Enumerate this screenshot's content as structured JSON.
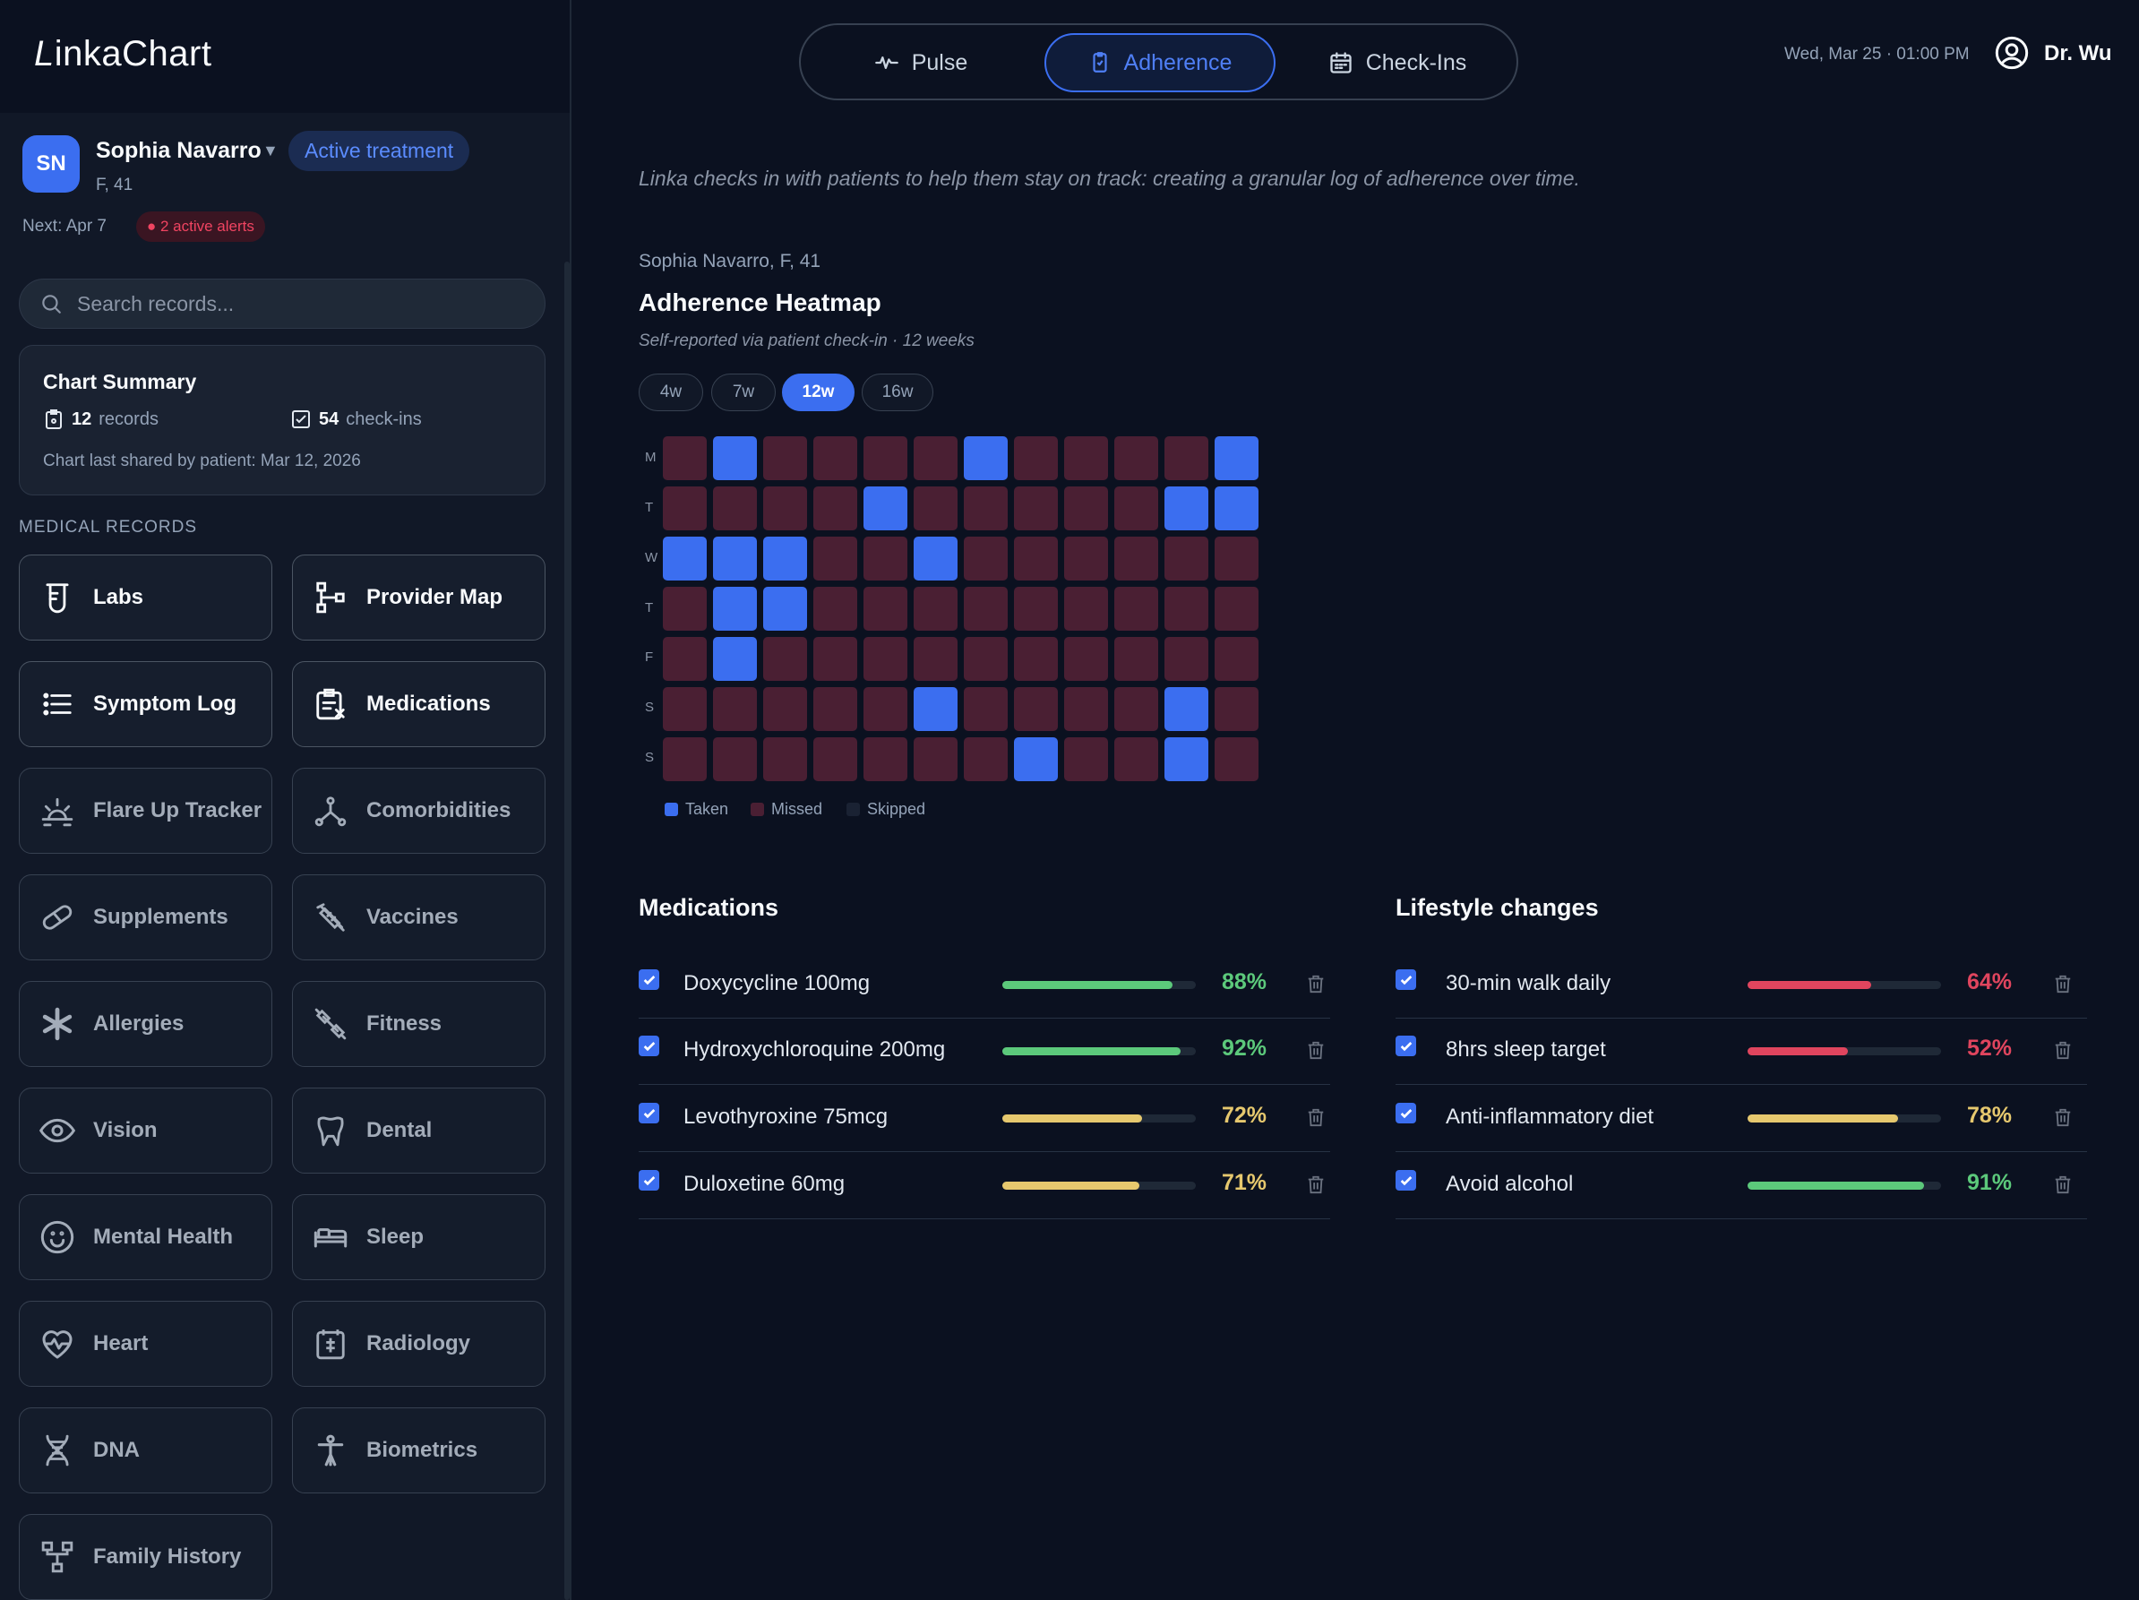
{
  "app": {
    "logo_first": "L",
    "logo_rest": "inkaChart"
  },
  "patient": {
    "initials": "SN",
    "name": "Sophia Navarro",
    "caret": "▼",
    "status": "Active treatment",
    "demographics": "F, 41",
    "next": "Next: Apr 7",
    "alerts": "● 2 active alerts"
  },
  "search": {
    "placeholder": "Search records..."
  },
  "summary": {
    "title": "Chart Summary",
    "records_count": "12",
    "records_label": "records",
    "checkins_count": "54",
    "checkins_label": "check-ins",
    "shared": "Chart last shared by patient: Mar 12, 2026"
  },
  "records": {
    "section": "MEDICAL RECORDS",
    "items": [
      {
        "label": "Labs",
        "icon": "beaker-icon",
        "highlight": true
      },
      {
        "label": "Provider Map",
        "icon": "network-icon",
        "highlight": true
      },
      {
        "label": "Symptom Log",
        "icon": "list-icon",
        "highlight": true
      },
      {
        "label": "Medications",
        "icon": "prescription-icon",
        "highlight": true
      },
      {
        "label": "Flare Up Tracker",
        "icon": "flare-icon",
        "highlight": false
      },
      {
        "label": "Comorbidities",
        "icon": "branch-icon",
        "highlight": false
      },
      {
        "label": "Supplements",
        "icon": "pill-icon",
        "highlight": false
      },
      {
        "label": "Vaccines",
        "icon": "syringe-icon",
        "highlight": false
      },
      {
        "label": "Allergies",
        "icon": "asterisk-icon",
        "highlight": false
      },
      {
        "label": "Fitness",
        "icon": "dumbbell-icon",
        "highlight": false
      },
      {
        "label": "Vision",
        "icon": "eye-icon",
        "highlight": false
      },
      {
        "label": "Dental",
        "icon": "tooth-icon",
        "highlight": false
      },
      {
        "label": "Mental Health",
        "icon": "smile-icon",
        "highlight": false
      },
      {
        "label": "Sleep",
        "icon": "bed-icon",
        "highlight": false
      },
      {
        "label": "Heart",
        "icon": "heart-pulse-icon",
        "highlight": false
      },
      {
        "label": "Radiology",
        "icon": "xray-icon",
        "highlight": false
      },
      {
        "label": "DNA",
        "icon": "dna-icon",
        "highlight": false
      },
      {
        "label": "Biometrics",
        "icon": "body-icon",
        "highlight": false
      },
      {
        "label": "Family History",
        "icon": "family-tree-icon",
        "highlight": false
      }
    ]
  },
  "nav": {
    "tabs": [
      {
        "label": "Pulse",
        "icon": "pulse-icon",
        "active": false
      },
      {
        "label": "Adherence",
        "icon": "clipboard-icon",
        "active": true
      },
      {
        "label": "Check-Ins",
        "icon": "calendar-icon",
        "active": false
      }
    ]
  },
  "header": {
    "datetime": "Wed, Mar 25 · 01:00 PM",
    "user": "Dr. Wu"
  },
  "intro": "Linka checks in with patients to help them stay on track: creating a granular log of adherence over time.",
  "heatmap": {
    "patient": "Sophia Navarro, F, 41",
    "title": "Adherence Heatmap",
    "subtitle": "Self-reported via patient check-in · 12 weeks",
    "ranges": [
      {
        "label": "4w",
        "active": false
      },
      {
        "label": "7w",
        "active": false
      },
      {
        "label": "12w",
        "active": true
      },
      {
        "label": "16w",
        "active": false
      }
    ],
    "days": [
      "M",
      "T",
      "W",
      "T",
      "F",
      "S",
      "S"
    ],
    "grid": [
      [
        0,
        1,
        0,
        0,
        0,
        0,
        1,
        0,
        0,
        0,
        0,
        1
      ],
      [
        0,
        0,
        0,
        0,
        1,
        0,
        0,
        0,
        0,
        0,
        1,
        1
      ],
      [
        1,
        1,
        1,
        0,
        0,
        1,
        0,
        0,
        0,
        0,
        0,
        0
      ],
      [
        0,
        1,
        1,
        0,
        0,
        0,
        0,
        0,
        0,
        0,
        0,
        0
      ],
      [
        0,
        1,
        0,
        0,
        0,
        0,
        0,
        0,
        0,
        0,
        0,
        0
      ],
      [
        0,
        0,
        0,
        0,
        0,
        1,
        0,
        0,
        0,
        0,
        1,
        0
      ],
      [
        0,
        0,
        0,
        0,
        0,
        0,
        0,
        1,
        0,
        0,
        1,
        0
      ]
    ],
    "legend": [
      {
        "label": "Taken",
        "color": "#3b6ef0"
      },
      {
        "label": "Missed",
        "color": "#4a1f33"
      },
      {
        "label": "Skipped",
        "color": "#1a2233"
      }
    ]
  },
  "colors": {
    "taken": "#3b6ef0",
    "missed": "#4a1f33",
    "green": "#5cc97b",
    "yellow": "#e6c86e",
    "red": "#e0455e"
  },
  "medications": {
    "title": "Medications",
    "items": [
      {
        "name": "Doxycycline 100mg",
        "pct": "88%",
        "value": 0.88,
        "status": "green"
      },
      {
        "name": "Hydroxychloroquine 200mg",
        "pct": "92%",
        "value": 0.92,
        "status": "green"
      },
      {
        "name": "Levothyroxine 75mcg",
        "pct": "72%",
        "value": 0.72,
        "status": "yellow"
      },
      {
        "name": "Duloxetine 60mg",
        "pct": "71%",
        "value": 0.71,
        "status": "yellow"
      }
    ]
  },
  "lifestyle": {
    "title": "Lifestyle changes",
    "items": [
      {
        "name": "30-min walk daily",
        "pct": "64%",
        "value": 0.64,
        "status": "red"
      },
      {
        "name": "8hrs sleep target",
        "pct": "52%",
        "value": 0.52,
        "status": "red"
      },
      {
        "name": "Anti-inflammatory diet",
        "pct": "78%",
        "value": 0.78,
        "status": "yellow"
      },
      {
        "name": "Avoid alcohol",
        "pct": "91%",
        "value": 0.91,
        "status": "green"
      }
    ]
  }
}
